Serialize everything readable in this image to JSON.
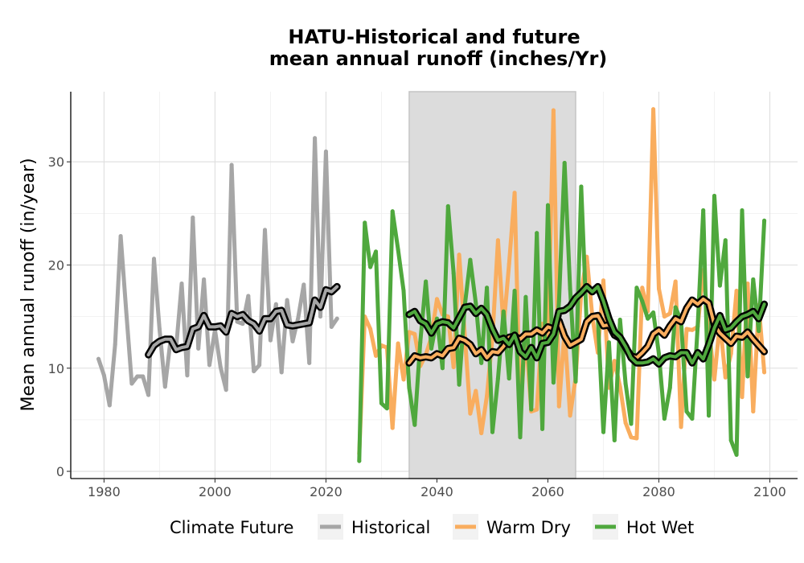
{
  "chart_data": {
    "type": "line",
    "title": [
      "HATU-Historical and future",
      "mean annual runoff (inches/Yr)"
    ],
    "xlabel": "",
    "ylabel": "Mean annual runoff (in/year)",
    "xlim": [
      1974,
      2105
    ],
    "ylim": [
      -0.7,
      36.8
    ],
    "xticks": [
      1980,
      2000,
      2020,
      2040,
      2060,
      2080,
      2100
    ],
    "yticks": [
      0,
      10,
      20,
      30
    ],
    "grid": true,
    "shaded_period": [
      2035,
      2065
    ],
    "shaded_color": "#dcdcdc",
    "legend": {
      "title": "Climate Future",
      "position": "bottom"
    },
    "series": [
      {
        "name": "Historical",
        "color": "#a6a6a6",
        "x": [
          1979,
          1980,
          1981,
          1982,
          1983,
          1984,
          1985,
          1986,
          1987,
          1988,
          1989,
          1990,
          1991,
          1992,
          1993,
          1994,
          1995,
          1996,
          1997,
          1998,
          1999,
          2000,
          2001,
          2002,
          2003,
          2004,
          2005,
          2006,
          2007,
          2008,
          2009,
          2010,
          2011,
          2012,
          2013,
          2014,
          2015,
          2016,
          2017,
          2018,
          2019,
          2020,
          2021,
          2022
        ],
        "y": [
          10.9,
          9.3,
          6.4,
          12.3,
          22.8,
          15.5,
          8.5,
          9.2,
          9.2,
          7.4,
          20.6,
          13.8,
          8.2,
          12.8,
          12.0,
          18.2,
          9.3,
          24.6,
          11.9,
          18.6,
          10.3,
          13.7,
          10.1,
          7.9,
          29.7,
          14.5,
          14.3,
          17.0,
          9.7,
          10.3,
          23.4,
          12.7,
          16.2,
          9.6,
          16.6,
          12.6,
          14.9,
          18.1,
          10.5,
          32.3,
          15.0,
          31.0,
          14.0,
          14.8
        ]
      },
      {
        "name": "Warm Dry",
        "color": "#f9ad5e",
        "x": [
          2026,
          2027,
          2028,
          2029,
          2030,
          2031,
          2032,
          2033,
          2034,
          2035,
          2036,
          2037,
          2038,
          2039,
          2040,
          2041,
          2042,
          2043,
          2044,
          2045,
          2046,
          2047,
          2048,
          2049,
          2050,
          2051,
          2052,
          2053,
          2054,
          2055,
          2056,
          2057,
          2058,
          2059,
          2060,
          2061,
          2062,
          2063,
          2064,
          2065,
          2066,
          2067,
          2068,
          2069,
          2070,
          2071,
          2072,
          2073,
          2074,
          2075,
          2076,
          2077,
          2078,
          2079,
          2080,
          2081,
          2082,
          2083,
          2084,
          2085,
          2086,
          2087,
          2088,
          2089,
          2090,
          2091,
          2092,
          2093,
          2094,
          2095,
          2096,
          2097,
          2098,
          2099
        ],
        "y": [
          1.7,
          15.0,
          13.8,
          11.2,
          12.2,
          12.0,
          4.2,
          12.4,
          8.9,
          13.5,
          13.3,
          10.2,
          11.3,
          13.0,
          16.7,
          15.2,
          15.0,
          10.1,
          21.0,
          13.3,
          5.6,
          7.8,
          3.7,
          7.3,
          13.0,
          22.4,
          13.9,
          20.1,
          27.0,
          5.6,
          13.4,
          5.8,
          6.0,
          14.3,
          12.8,
          35.0,
          6.3,
          13.7,
          5.4,
          9.1,
          17.3,
          20.8,
          15.0,
          11.5,
          18.5,
          8.1,
          10.7,
          8.2,
          4.7,
          3.3,
          3.2,
          17.8,
          15.5,
          35.1,
          17.7,
          15.0,
          15.3,
          18.4,
          4.3,
          13.8,
          13.7,
          14.0,
          19.5,
          14.0,
          8.9,
          14.5,
          9.1,
          11.4,
          17.5,
          7.2,
          18.2,
          5.8,
          16.1,
          9.6
        ]
      },
      {
        "name": "Hot Wet",
        "color": "#4fa83d",
        "x": [
          2026,
          2027,
          2028,
          2029,
          2030,
          2031,
          2032,
          2033,
          2034,
          2035,
          2036,
          2037,
          2038,
          2039,
          2040,
          2041,
          2042,
          2043,
          2044,
          2045,
          2046,
          2047,
          2048,
          2049,
          2050,
          2051,
          2052,
          2053,
          2054,
          2055,
          2056,
          2057,
          2058,
          2059,
          2060,
          2061,
          2062,
          2063,
          2064,
          2065,
          2066,
          2067,
          2068,
          2069,
          2070,
          2071,
          2072,
          2073,
          2074,
          2075,
          2076,
          2077,
          2078,
          2079,
          2080,
          2081,
          2082,
          2083,
          2084,
          2085,
          2086,
          2087,
          2088,
          2089,
          2090,
          2091,
          2092,
          2093,
          2094,
          2095,
          2096,
          2097,
          2098,
          2099
        ],
        "y": [
          1.0,
          24.1,
          19.8,
          21.3,
          6.6,
          6.1,
          25.2,
          21.5,
          17.5,
          8.1,
          4.5,
          12.5,
          18.4,
          11.9,
          14.8,
          10.0,
          25.7,
          19.2,
          8.4,
          16.0,
          20.5,
          16.3,
          10.5,
          17.8,
          3.8,
          9.0,
          15.5,
          9.0,
          17.5,
          3.3,
          16.9,
          6.0,
          23.1,
          4.1,
          25.8,
          8.6,
          16.5,
          29.9,
          17.7,
          8.7,
          27.6,
          14.1,
          14.9,
          14.8,
          3.8,
          12.5,
          3.0,
          14.7,
          8.5,
          4.6,
          17.8,
          16.5,
          14.8,
          15.4,
          11.4,
          5.1,
          8.1,
          15.9,
          14.6,
          5.8,
          5.1,
          14.1,
          25.3,
          5.4,
          26.7,
          18.0,
          22.4,
          3.0,
          1.6,
          25.3,
          9.2,
          18.6,
          13.6,
          24.3
        ]
      }
    ],
    "moving_averages": [
      {
        "series": "Historical",
        "outline_color": "#000000",
        "x": [
          1988,
          1989,
          1990,
          1991,
          1992,
          1993,
          1994,
          1995,
          1996,
          1997,
          1998,
          1999,
          2000,
          2001,
          2002,
          2003,
          2004,
          2005,
          2006,
          2007,
          2008,
          2009,
          2010,
          2011,
          2012,
          2013,
          2014,
          2015,
          2016,
          2017,
          2018,
          2019,
          2020,
          2021,
          2022
        ],
        "y": [
          11.3,
          12.2,
          12.6,
          12.8,
          12.8,
          11.8,
          12.0,
          12.1,
          13.8,
          14.0,
          15.1,
          14.0,
          14.0,
          14.1,
          13.5,
          15.3,
          15.0,
          15.2,
          14.6,
          14.3,
          13.6,
          14.8,
          14.8,
          15.5,
          15.6,
          14.2,
          14.1,
          14.2,
          14.3,
          14.4,
          16.6,
          15.9,
          17.6,
          17.4,
          17.9
        ]
      },
      {
        "series": "Warm Dry",
        "outline_color": "#000000",
        "x": [
          2035,
          2036,
          2037,
          2038,
          2039,
          2040,
          2041,
          2042,
          2043,
          2044,
          2045,
          2046,
          2047,
          2048,
          2049,
          2050,
          2051,
          2052,
          2053,
          2054,
          2055,
          2056,
          2057,
          2058,
          2059,
          2060,
          2061,
          2062,
          2063,
          2064,
          2065,
          2066,
          2067,
          2068,
          2069,
          2070,
          2071,
          2072,
          2073,
          2074,
          2075,
          2076,
          2077,
          2078,
          2079,
          2080,
          2081,
          2082,
          2083,
          2084,
          2085,
          2086,
          2087,
          2088,
          2089,
          2090,
          2091,
          2092,
          2093,
          2094,
          2095,
          2096,
          2097,
          2098,
          2099
        ],
        "y": [
          10.5,
          11.2,
          11.0,
          11.1,
          11.0,
          11.4,
          11.2,
          11.9,
          12.0,
          12.9,
          12.7,
          12.3,
          11.4,
          11.8,
          11.0,
          11.6,
          11.5,
          12.1,
          13.0,
          13.1,
          12.8,
          13.3,
          13.3,
          13.7,
          13.4,
          14.0,
          13.8,
          14.6,
          13.1,
          12.2,
          12.5,
          12.8,
          14.5,
          15.0,
          15.1,
          14.1,
          14.2,
          13.2,
          12.9,
          12.0,
          11.2,
          11.0,
          11.5,
          12.1,
          13.3,
          13.7,
          13.2,
          14.1,
          14.8,
          14.5,
          15.8,
          16.6,
          16.2,
          16.7,
          16.3,
          14.2,
          13.4,
          12.9,
          12.4,
          13.1,
          13.0,
          13.5,
          12.8,
          12.2,
          11.6
        ]
      },
      {
        "series": "Hot Wet",
        "outline_color": "#000000",
        "x": [
          2035,
          2036,
          2037,
          2038,
          2039,
          2040,
          2041,
          2042,
          2043,
          2044,
          2045,
          2046,
          2047,
          2048,
          2049,
          2050,
          2051,
          2052,
          2053,
          2054,
          2055,
          2056,
          2057,
          2058,
          2059,
          2060,
          2061,
          2062,
          2063,
          2064,
          2065,
          2066,
          2067,
          2068,
          2069,
          2070,
          2071,
          2072,
          2073,
          2074,
          2075,
          2076,
          2077,
          2078,
          2079,
          2080,
          2081,
          2082,
          2083,
          2084,
          2085,
          2086,
          2087,
          2088,
          2089,
          2090,
          2091,
          2092,
          2093,
          2094,
          2095,
          2096,
          2097,
          2098,
          2099
        ],
        "y": [
          15.2,
          15.5,
          14.6,
          14.3,
          13.4,
          14.3,
          14.5,
          14.4,
          13.9,
          14.9,
          15.9,
          16.0,
          15.3,
          15.8,
          15.2,
          13.8,
          12.7,
          12.9,
          12.3,
          13.2,
          11.6,
          11.1,
          12.0,
          11.0,
          12.4,
          12.5,
          13.3,
          15.5,
          15.6,
          16.0,
          16.8,
          17.3,
          17.9,
          17.4,
          17.9,
          16.5,
          14.8,
          13.5,
          13.0,
          12.1,
          11.0,
          10.5,
          10.5,
          10.6,
          10.9,
          10.4,
          11.0,
          11.2,
          11.1,
          11.5,
          11.5,
          10.5,
          11.5,
          10.9,
          12.3,
          13.9,
          15.1,
          13.7,
          13.9,
          14.5,
          15.0,
          15.2,
          15.5,
          14.8,
          16.2
        ]
      }
    ]
  }
}
